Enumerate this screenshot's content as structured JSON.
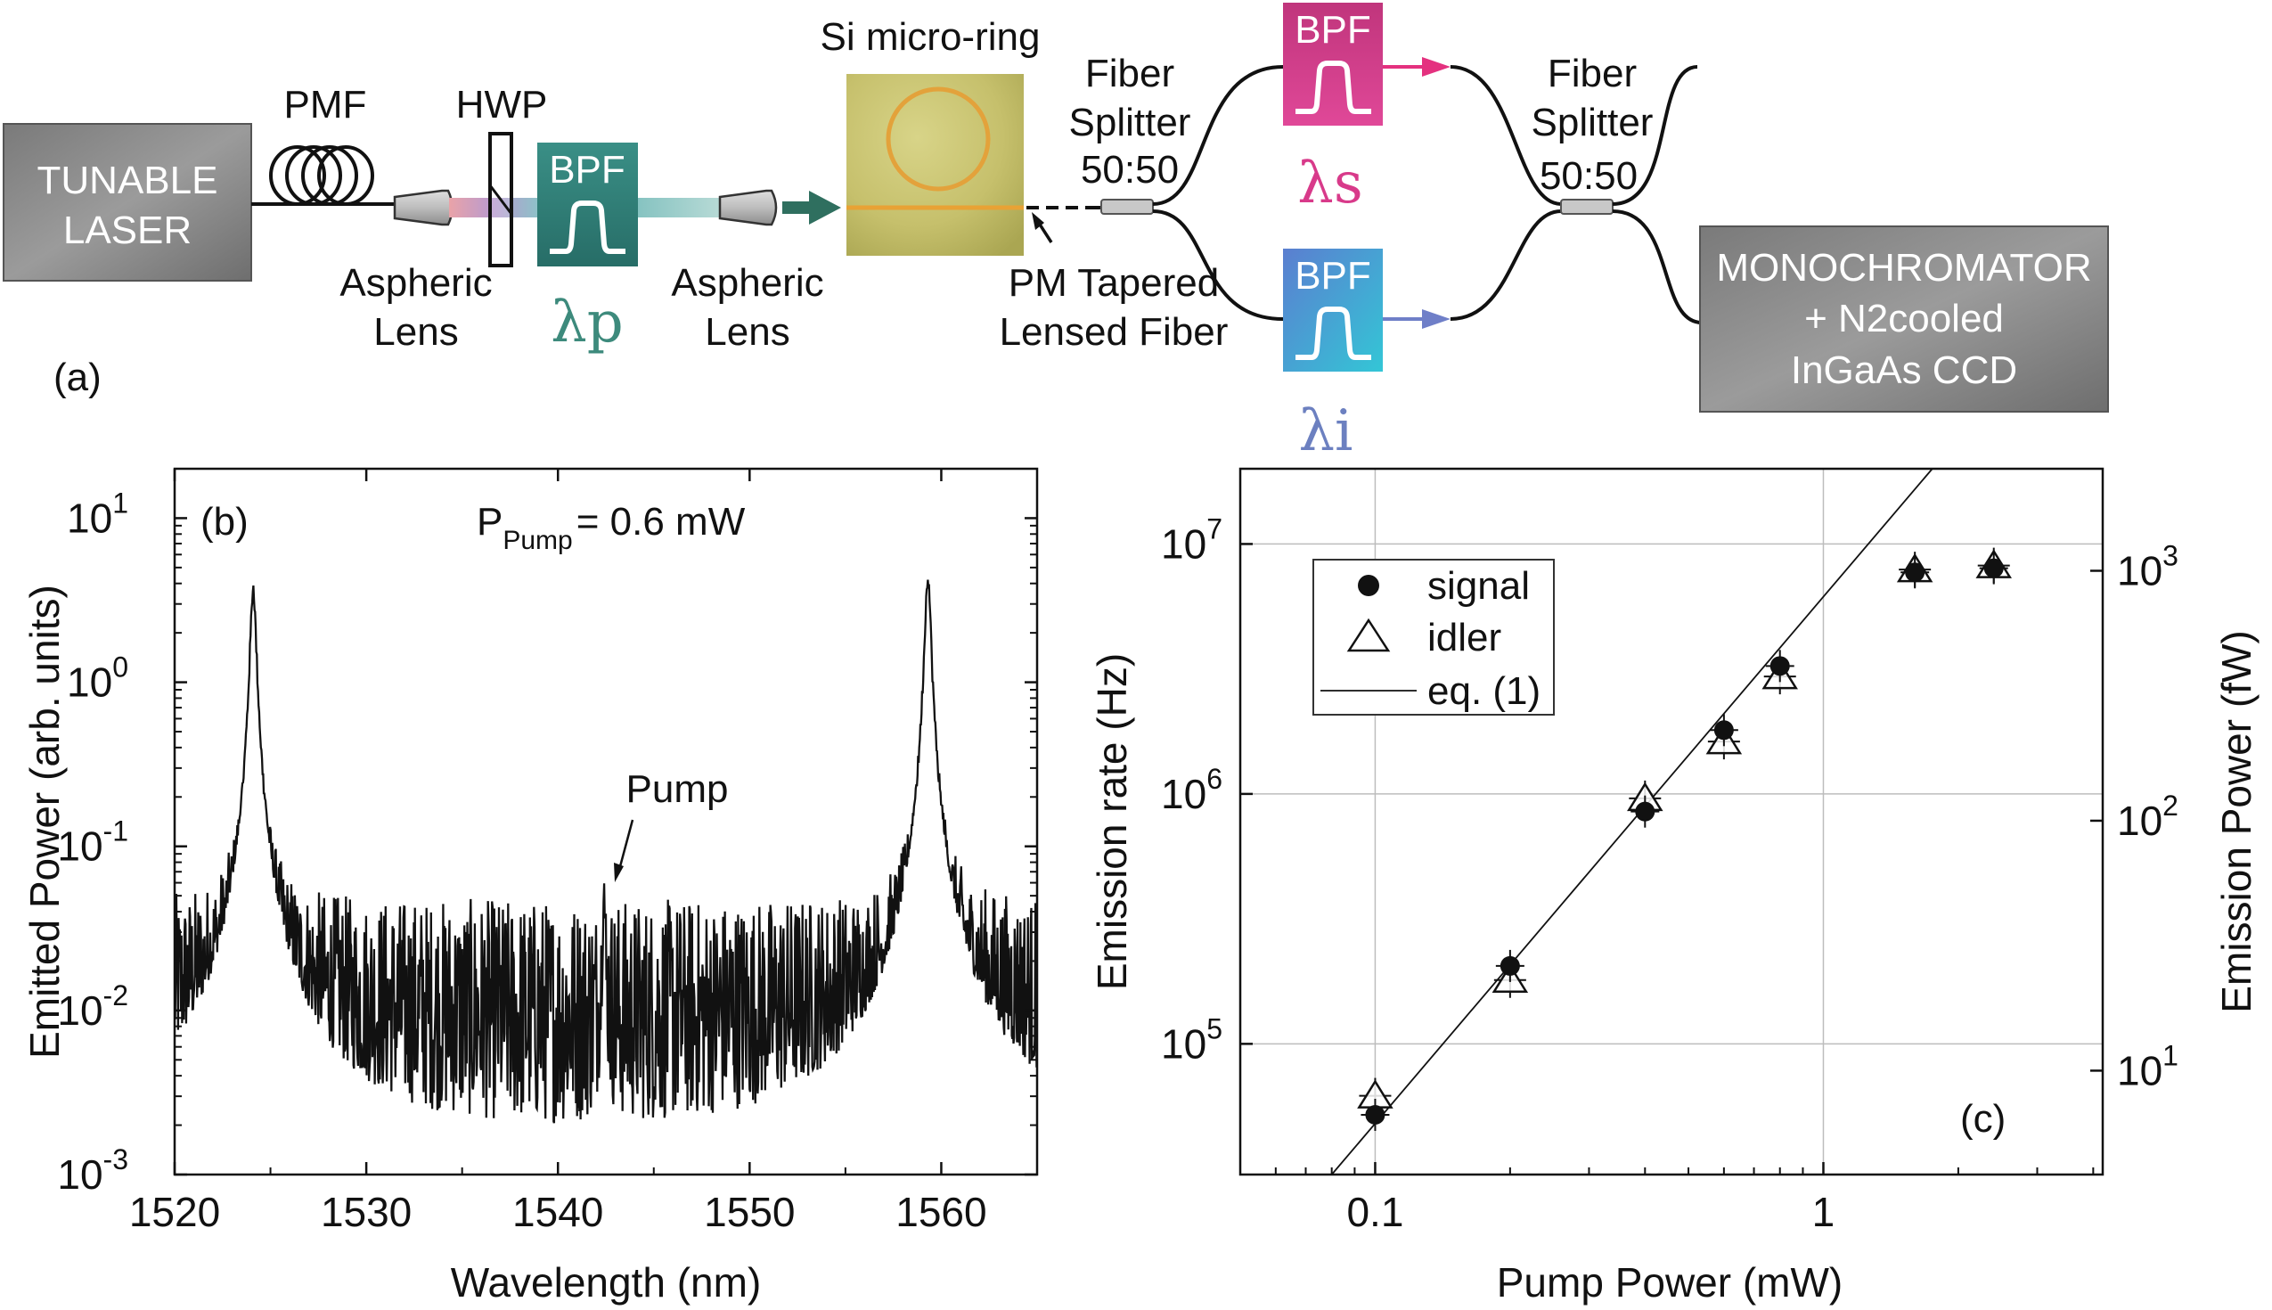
{
  "panel_a": {
    "label": "(a)",
    "laser_line1": "TUNABLE",
    "laser_line2": "LASER",
    "pmf": "PMF",
    "hwp": "HWP",
    "bpf": "BPF",
    "lens1_line1": "Aspheric",
    "lens1_line2": "Lens",
    "lambda_p": "λp",
    "lens2_line1": "Aspheric",
    "lens2_line2": "Lens",
    "micro_ring": "Si micro-ring",
    "tapered_line1": "PM Tapered",
    "tapered_line2": "Lensed Fiber",
    "splitter1_line1": "Fiber",
    "splitter1_line2": "Splitter",
    "splitter1_line3": "50:50",
    "lambda_s": "λs",
    "lambda_i": "λi",
    "splitter2_line1": "Fiber",
    "splitter2_line2": "Splitter",
    "splitter2_line3": "50:50",
    "mono_line1": "MONOCHROMATOR",
    "mono_line2": "+ N2cooled",
    "mono_line3": "InGaAs CCD",
    "colors": {
      "pump_bpf": "#2f8078",
      "signal_bpf": "#d43a86",
      "idler_bpf": "#4a9bd0",
      "lambda_p": "#3d8a7c",
      "lambda_s": "#d83a8a",
      "lambda_i": "#6c80c0",
      "signal_arrow": "#e4317f",
      "idler_arrow": "#6f7fc8"
    }
  },
  "panel_b": {
    "label": "(b)",
    "annotation_main": "P",
    "annotation_sub": "Pump",
    "annotation_value": "= 0.6 mW",
    "pump_label": "Pump",
    "chart_data": {
      "type": "line",
      "title": "",
      "xlabel": "Wavelength (nm)",
      "ylabel": "Emitted Power (arb. units)",
      "xlim": [
        1520,
        1565
      ],
      "ylim": [
        0.001,
        20
      ],
      "yscale": "log",
      "x_ticks": [
        1520,
        1530,
        1540,
        1550,
        1560
      ],
      "y_ticks": [
        {
          "base": "10",
          "exp": "-3"
        },
        {
          "base": "10",
          "exp": "-2"
        },
        {
          "base": "10",
          "exp": "-1"
        },
        {
          "base": "10",
          "exp": "0"
        },
        {
          "base": "10",
          "exp": "1"
        }
      ],
      "peaks": [
        {
          "x": 1524.1,
          "y": 3.8,
          "name": "signal"
        },
        {
          "x": 1559.3,
          "y": 4.5,
          "name": "idler"
        },
        {
          "x": 1542.4,
          "y": 0.05,
          "name": "pump"
        }
      ],
      "noise_floor": 0.01
    }
  },
  "panel_c": {
    "label": "(c)",
    "chart_data": {
      "type": "scatter",
      "title": "",
      "xlabel": "Pump Power (mW)",
      "ylabel": "Emission rate (Hz)",
      "y2label": "Emission Power (fW)",
      "xscale": "log",
      "yscale": "log",
      "xlim": [
        0.05,
        4.2
      ],
      "ylim": [
        30000,
        20000000
      ],
      "x_ticks": [
        {
          "value": 0.1,
          "label": "0.1"
        },
        {
          "value": 1,
          "label": "1"
        }
      ],
      "y_ticks": [
        {
          "base": "10",
          "exp": "5"
        },
        {
          "base": "10",
          "exp": "6"
        },
        {
          "base": "10",
          "exp": "7"
        }
      ],
      "y2_ticks": [
        {
          "base": "10",
          "exp": "1"
        },
        {
          "base": "10",
          "exp": "2"
        },
        {
          "base": "10",
          "exp": "3"
        }
      ],
      "y2_scale_fW_per_Hz": 0.000128,
      "legend": {
        "position": "top-left",
        "entries": [
          "signal",
          "idler",
          "eq. (1)"
        ]
      },
      "series": [
        {
          "name": "signal",
          "marker": "filled-circle",
          "x": [
            0.1,
            0.2,
            0.4,
            0.6,
            0.8,
            1.6,
            2.4
          ],
          "y": [
            52000,
            205000,
            850000,
            1800000,
            3250000,
            7700000,
            8000000
          ]
        },
        {
          "name": "idler",
          "marker": "open-triangle",
          "x": [
            0.1,
            0.2,
            0.4,
            0.6,
            0.8,
            1.6,
            2.4
          ],
          "y": [
            62000,
            180000,
            960000,
            1620000,
            2950000,
            7900000,
            8200000
          ]
        },
        {
          "name": "eq. (1)",
          "marker": "line",
          "x": [
            0.08,
            1.75
          ],
          "y": [
            30000,
            20000000
          ]
        }
      ]
    }
  }
}
